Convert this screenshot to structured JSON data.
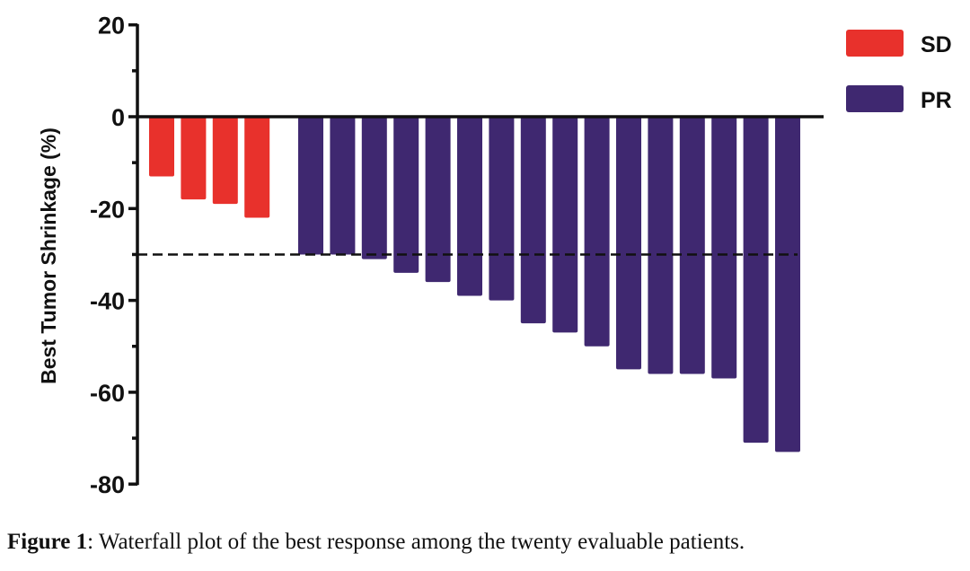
{
  "chart_data": {
    "type": "bar",
    "title": "",
    "xlabel": "",
    "ylabel": "Best Tumor Shrinkage (%)",
    "ylim": [
      -80,
      20
    ],
    "yticks": [
      20,
      0,
      -20,
      -40,
      -60,
      -80
    ],
    "ytick_labels": [
      "20",
      "0",
      "-20",
      "-40",
      "-60",
      "-80"
    ],
    "minor_tick_step": 10,
    "reference_line": {
      "y": -30,
      "style": "dashed"
    },
    "legend_position": "top-right",
    "grid": false,
    "series": [
      {
        "name": "SD",
        "color": "#e8312c",
        "values": [
          -13,
          -18,
          -19,
          -22
        ]
      },
      {
        "name": "PR",
        "color": "#3f2870",
        "values": [
          -30,
          -30,
          -31,
          -34,
          -36,
          -39,
          -40,
          -45,
          -47,
          -50,
          -55,
          -56,
          -56,
          -57,
          -71,
          -73
        ]
      }
    ]
  },
  "caption": {
    "label": "Figure 1",
    "text": ": Waterfall plot of the best response among the twenty evaluable patients."
  }
}
